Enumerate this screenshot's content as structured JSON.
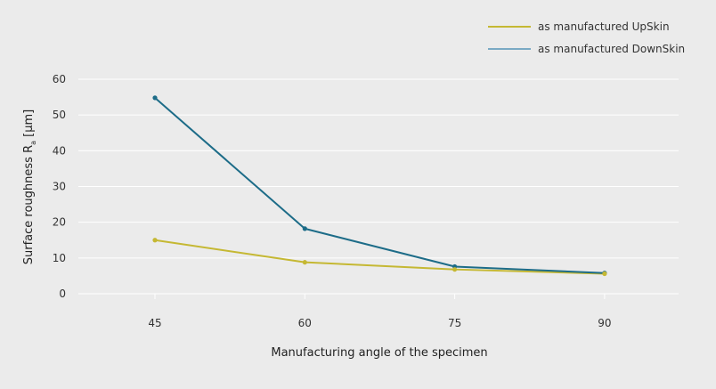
{
  "chart_data": {
    "type": "line",
    "x": [
      45,
      60,
      75,
      90
    ],
    "xlabel": "Manufacturing angle of the specimen",
    "ylabel": "Surface roughness R",
    "ylabel_subscript": "a",
    "ylabel_unit": " [µm]",
    "ylim": [
      0,
      60
    ],
    "yticks": [
      0,
      10,
      20,
      30,
      40,
      50,
      60
    ],
    "grid": "horizontal",
    "legend_position": "top-right",
    "series": [
      {
        "name": "as manufactured UpSkin",
        "values": [
          15,
          8.8,
          6.8,
          5.6
        ],
        "color": "#c5b833",
        "marker_color": "#c5b833"
      },
      {
        "name": "as manufactured DownSkin",
        "values": [
          54.8,
          18.2,
          7.6,
          5.8
        ],
        "color": "#1d6c88",
        "marker_color": "#1d6c88",
        "legend_color": "#7aa9c4"
      }
    ]
  }
}
